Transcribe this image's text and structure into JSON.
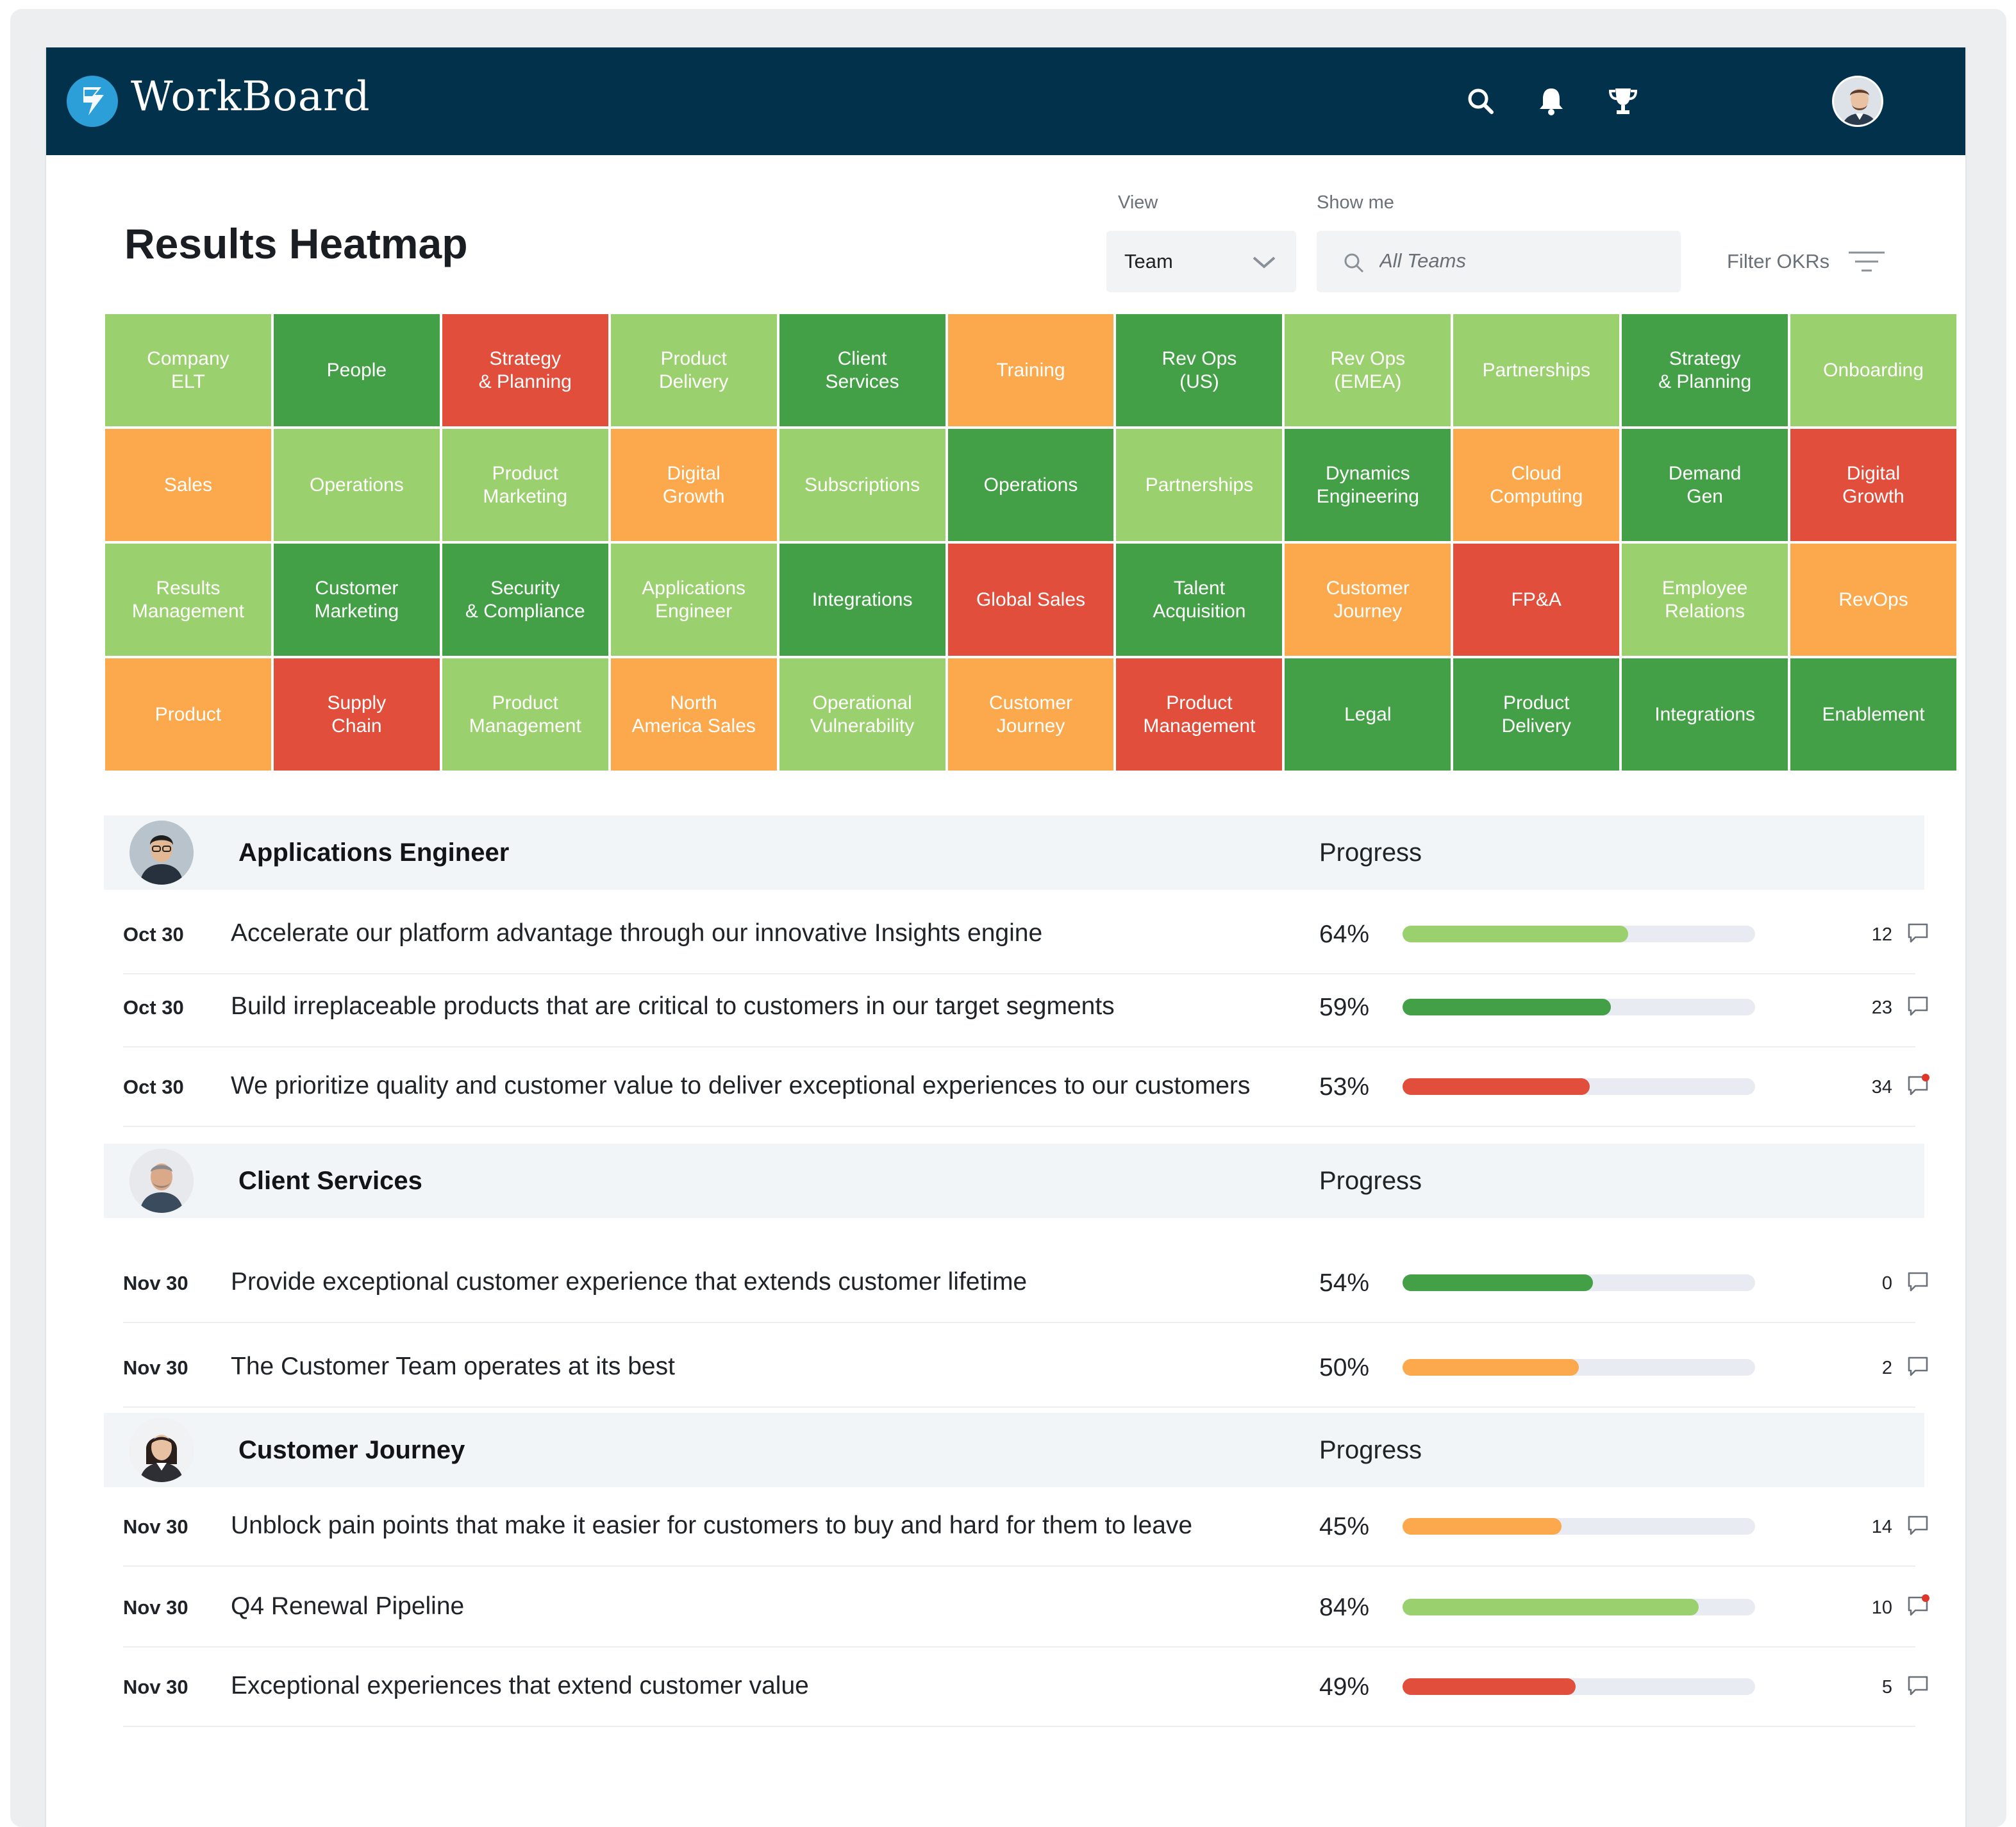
{
  "app": {
    "brand": "WorkBoard"
  },
  "header_icons": [
    "search-icon",
    "bell-icon",
    "trophy-icon",
    "user-avatar"
  ],
  "page": {
    "title": "Results Heatmap"
  },
  "controls": {
    "view_label": "View",
    "view_value": "Team",
    "show_me_label": "Show me",
    "search_placeholder": "All Teams",
    "filter_label": "Filter OKRs"
  },
  "colors": {
    "dark_green": "#44a047",
    "light_green": "#9bd06e",
    "orange": "#fba94c",
    "red": "#e14e3c",
    "header": "#02314b"
  },
  "heatmap": [
    {
      "label": "Company\nELT",
      "status": "light_green"
    },
    {
      "label": "People",
      "status": "dark_green"
    },
    {
      "label": "Strategy\n& Planning",
      "status": "red"
    },
    {
      "label": "Product\nDelivery",
      "status": "light_green"
    },
    {
      "label": "Client\nServices",
      "status": "dark_green"
    },
    {
      "label": "Training",
      "status": "orange"
    },
    {
      "label": "Rev Ops\n(US)",
      "status": "dark_green"
    },
    {
      "label": "Rev Ops\n(EMEA)",
      "status": "light_green"
    },
    {
      "label": "Partnerships",
      "status": "light_green"
    },
    {
      "label": "Strategy\n& Planning",
      "status": "dark_green"
    },
    {
      "label": "Onboarding",
      "status": "light_green"
    },
    {
      "label": "Sales",
      "status": "orange"
    },
    {
      "label": "Operations",
      "status": "light_green"
    },
    {
      "label": "Product\nMarketing",
      "status": "light_green"
    },
    {
      "label": "Digital\nGrowth",
      "status": "orange"
    },
    {
      "label": "Subscriptions",
      "status": "light_green"
    },
    {
      "label": "Operations",
      "status": "dark_green"
    },
    {
      "label": "Partnerships",
      "status": "light_green"
    },
    {
      "label": "Dynamics\nEngineering",
      "status": "dark_green"
    },
    {
      "label": "Cloud\nComputing",
      "status": "orange"
    },
    {
      "label": "Demand\nGen",
      "status": "dark_green"
    },
    {
      "label": "Digital\nGrowth",
      "status": "red"
    },
    {
      "label": "Results\nManagement",
      "status": "light_green"
    },
    {
      "label": "Customer\nMarketing",
      "status": "dark_green"
    },
    {
      "label": "Security\n& Compliance",
      "status": "dark_green"
    },
    {
      "label": "Applications\nEngineer",
      "status": "light_green"
    },
    {
      "label": "Integrations",
      "status": "dark_green"
    },
    {
      "label": "Global Sales",
      "status": "red"
    },
    {
      "label": "Talent\nAcquisition",
      "status": "dark_green"
    },
    {
      "label": "Customer\nJourney",
      "status": "orange"
    },
    {
      "label": "FP&A",
      "status": "red"
    },
    {
      "label": "Employee\nRelations",
      "status": "light_green"
    },
    {
      "label": "RevOps",
      "status": "orange"
    },
    {
      "label": "Product",
      "status": "orange"
    },
    {
      "label": "Supply\nChain",
      "status": "red"
    },
    {
      "label": "Product\nManagement",
      "status": "light_green"
    },
    {
      "label": "North\nAmerica Sales",
      "status": "orange"
    },
    {
      "label": "Operational\nVulnerability",
      "status": "light_green"
    },
    {
      "label": "Customer\nJourney",
      "status": "orange"
    },
    {
      "label": "Product\nManagement",
      "status": "red"
    },
    {
      "label": "Legal",
      "status": "dark_green"
    },
    {
      "label": "Product\nDelivery",
      "status": "dark_green"
    },
    {
      "label": "Integrations",
      "status": "dark_green"
    },
    {
      "label": "Enablement",
      "status": "dark_green"
    }
  ],
  "sections": [
    {
      "title": "Applications Engineer",
      "progress_label": "Progress",
      "rows": [
        {
          "date": "Oct 30",
          "text": "Accelerate our platform advantage through our innovative Insights engine",
          "pct": "64%",
          "progress": 64,
          "status": "light_green",
          "comments": "12",
          "unread": false
        },
        {
          "date": "Oct 30",
          "text": "Build irreplaceable products that are critical to customers in our target segments",
          "pct": "59%",
          "progress": 59,
          "status": "dark_green",
          "comments": "23",
          "unread": false
        },
        {
          "date": "Oct 30",
          "text": "We prioritize quality and customer value to deliver exceptional experiences to our customers",
          "pct": "53%",
          "progress": 53,
          "status": "red",
          "comments": "34",
          "unread": true
        }
      ]
    },
    {
      "title": "Client Services",
      "progress_label": "Progress",
      "rows": [
        {
          "date": "Nov 30",
          "text": "Provide exceptional customer experience that extends customer lifetime",
          "pct": "54%",
          "progress": 54,
          "status": "dark_green",
          "comments": "0",
          "unread": false
        },
        {
          "date": "Nov 30",
          "text": "The Customer Team operates at its best",
          "pct": "50%",
          "progress": 50,
          "status": "orange",
          "comments": "2",
          "unread": false
        }
      ]
    },
    {
      "title": "Customer Journey",
      "progress_label": "Progress",
      "rows": [
        {
          "date": "Nov 30",
          "text": "Unblock pain points that make it easier for customers to buy and hard for them to leave",
          "pct": "45%",
          "progress": 45,
          "status": "orange",
          "comments": "14",
          "unread": false
        },
        {
          "date": "Nov 30",
          "text": "Q4 Renewal Pipeline",
          "pct": "84%",
          "progress": 84,
          "status": "light_green",
          "comments": "10",
          "unread": true
        },
        {
          "date": "Nov 30",
          "text": "Exceptional experiences that extend customer value",
          "pct": "49%",
          "progress": 49,
          "status": "red",
          "comments": "5",
          "unread": false
        }
      ]
    }
  ]
}
